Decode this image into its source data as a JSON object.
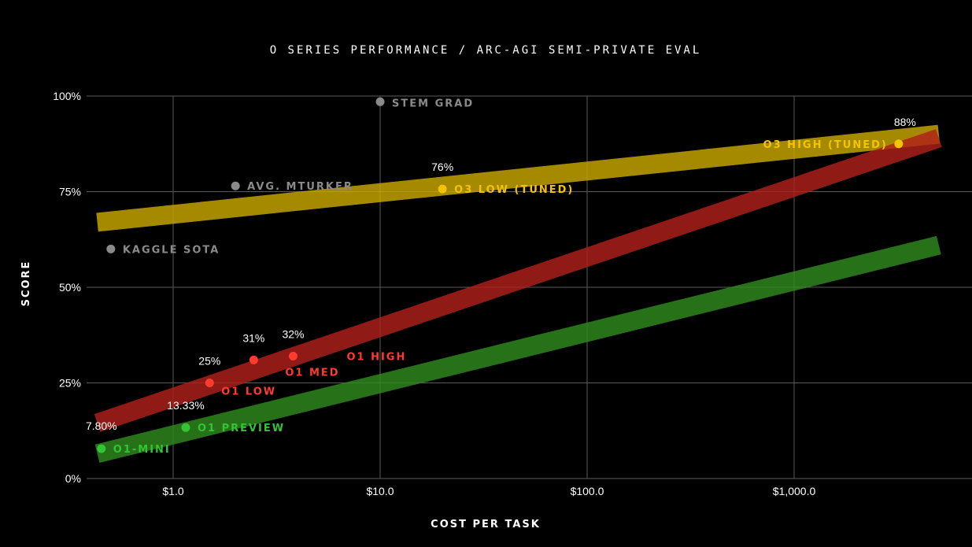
{
  "chart_data": {
    "type": "scatter",
    "title": "O SERIES PERFORMANCE / ARC-AGI SEMI-PRIVATE EVAL",
    "xlabel": "COST PER TASK",
    "ylabel": "SCORE",
    "x_scale": "log",
    "xlim": [
      0.4,
      5000
    ],
    "ylim": [
      0,
      100
    ],
    "x_ticks": [
      {
        "value": 1,
        "label": "$1.0"
      },
      {
        "value": 10,
        "label": "$10.0"
      },
      {
        "value": 100,
        "label": "$100.0"
      },
      {
        "value": 1000,
        "label": "$1,000.0"
      }
    ],
    "y_ticks": [
      {
        "value": 0,
        "label": "0%"
      },
      {
        "value": 25,
        "label": "25%"
      },
      {
        "value": 50,
        "label": "50%"
      },
      {
        "value": 75,
        "label": "75%"
      },
      {
        "value": 100,
        "label": "100%"
      }
    ],
    "grid": true,
    "colors": {
      "o3": "#f5c400",
      "o1": "#ff3b30",
      "o1_preview": "#33c433",
      "human": "#8a8a8a"
    },
    "trend_bands": [
      {
        "color": "#c9a800",
        "x": [
          0.43,
          5000
        ],
        "y": [
          67,
          90
        ]
      },
      {
        "color": "#b0201a",
        "x": [
          0.43,
          5000
        ],
        "y": [
          14.5,
          89
        ]
      },
      {
        "color": "#2f8a1f",
        "x": [
          0.43,
          5000
        ],
        "y": [
          6.5,
          61
        ]
      }
    ],
    "points": [
      {
        "name": "O1-MINI",
        "x": 0.45,
        "y": 7.8,
        "value_label": "7.80%",
        "color": "#33c433"
      },
      {
        "name": "O1 PREVIEW",
        "x": 1.15,
        "y": 13.33,
        "value_label": "13.33%",
        "color": "#33c433"
      },
      {
        "name": "O1 LOW",
        "x": 1.5,
        "y": 25,
        "value_label": "25%",
        "color": "#ff3b30"
      },
      {
        "name": "O1 MED",
        "x": 2.45,
        "y": 31,
        "value_label": "31%",
        "color": "#ff3b30"
      },
      {
        "name": "O1 HIGH",
        "x": 3.8,
        "y": 32,
        "value_label": "32%",
        "color": "#ff3b30"
      },
      {
        "name": "O3 LOW (TUNED)",
        "x": 20,
        "y": 75.7,
        "value_label": "76%",
        "color": "#f5c400"
      },
      {
        "name": "O3 HIGH (TUNED)",
        "x": 3200,
        "y": 87.5,
        "value_label": "88%",
        "color": "#f5c400"
      },
      {
        "name": "KAGGLE SOTA",
        "x": 0.5,
        "y": 60,
        "value_label": "",
        "color": "#8a8a8a"
      },
      {
        "name": "AVG. MTURKER",
        "x": 2,
        "y": 76.5,
        "value_label": "",
        "color": "#8a8a8a"
      },
      {
        "name": "STEM GRAD",
        "x": 10,
        "y": 98.5,
        "value_label": "",
        "color": "#8a8a8a"
      }
    ]
  }
}
